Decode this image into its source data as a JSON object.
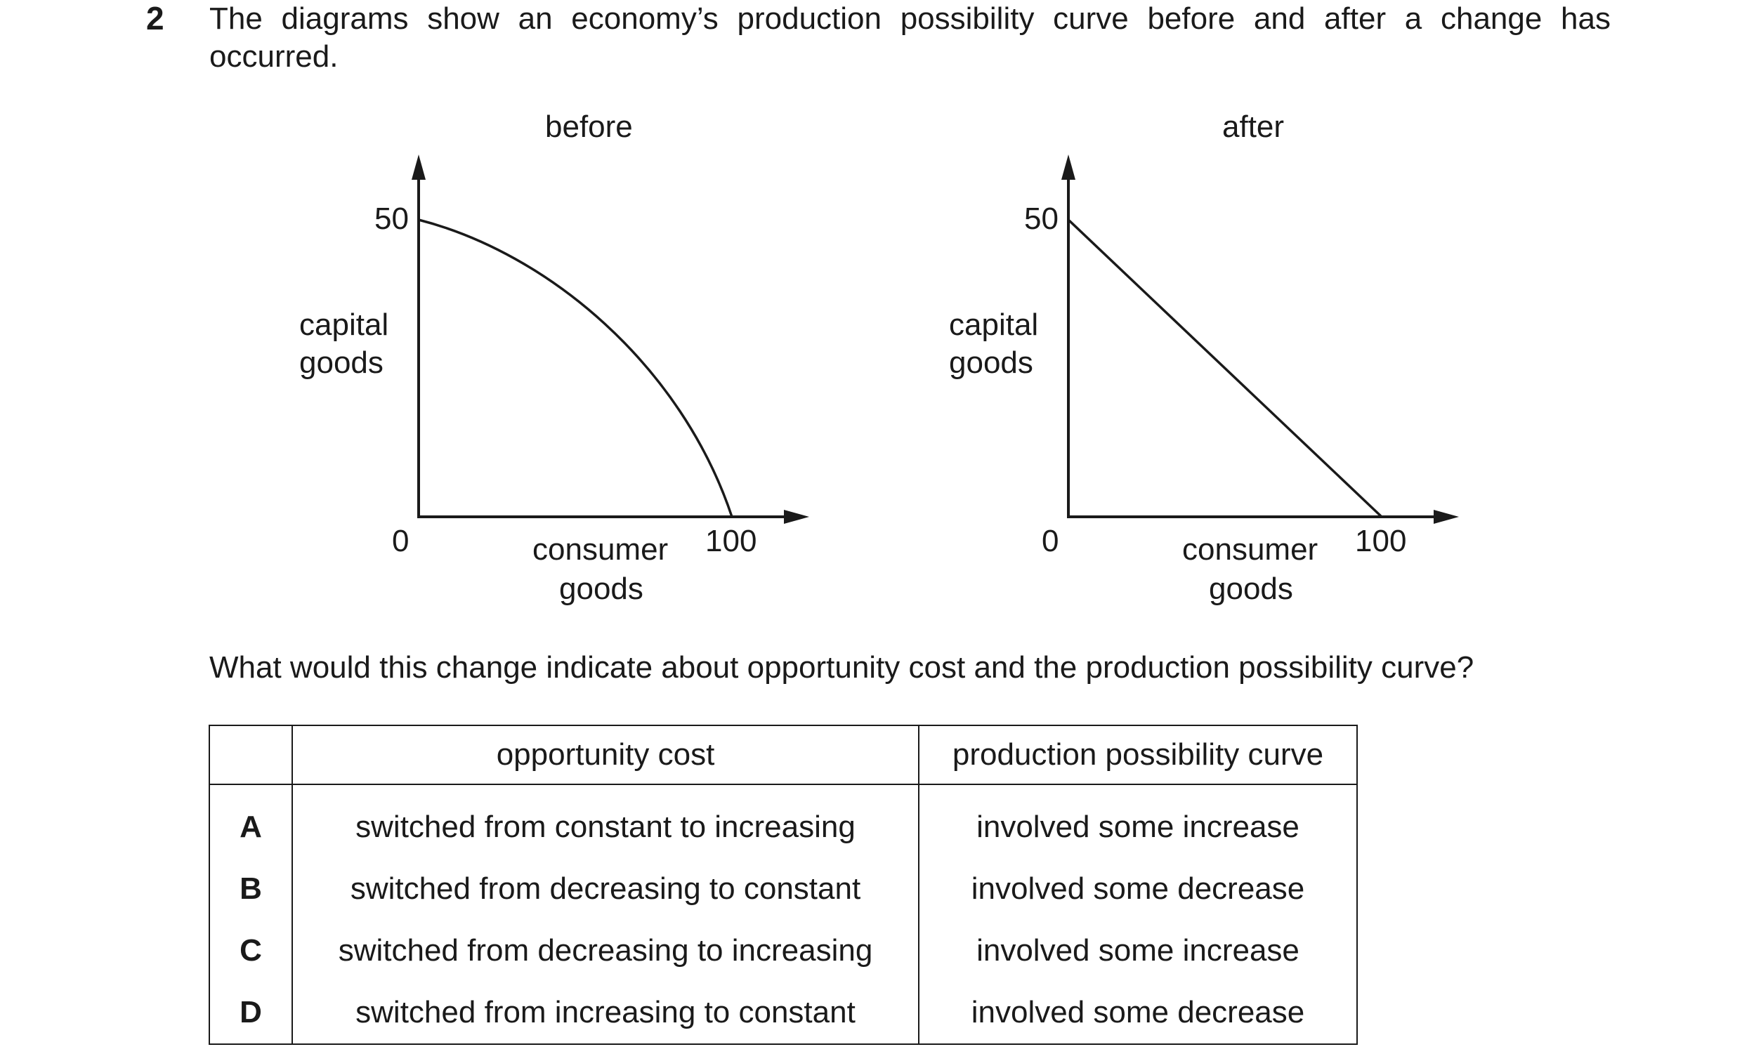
{
  "question": {
    "number": "2",
    "text": "The diagrams show an economy’s production possibility curve before and after a change has occurred."
  },
  "diagrams": [
    {
      "title": "before",
      "y_label_line1": "capital",
      "y_label_line2": "goods",
      "x_label_line1": "consumer",
      "x_label_line2": "goods",
      "origin": "0",
      "y_max": "50",
      "x_max": "100",
      "curve": "concave"
    },
    {
      "title": "after",
      "y_label_line1": "capital",
      "y_label_line2": "goods",
      "x_label_line1": "consumer",
      "x_label_line2": "goods",
      "origin": "0",
      "y_max": "50",
      "x_max": "100",
      "curve": "straight"
    }
  ],
  "prompt": "What would this change indicate about opportunity cost and the production possibility curve?",
  "table": {
    "headers": [
      "",
      "opportunity cost",
      "production possibility curve"
    ],
    "rows": [
      {
        "letter": "A",
        "opportunity_cost": "switched from constant to increasing",
        "ppc": "involved some increase"
      },
      {
        "letter": "B",
        "opportunity_cost": "switched from decreasing to constant",
        "ppc": "involved some decrease"
      },
      {
        "letter": "C",
        "opportunity_cost": "switched from decreasing to increasing",
        "ppc": "involved some increase"
      },
      {
        "letter": "D",
        "opportunity_cost": "switched from increasing to constant",
        "ppc": "involved some decrease"
      }
    ]
  }
}
